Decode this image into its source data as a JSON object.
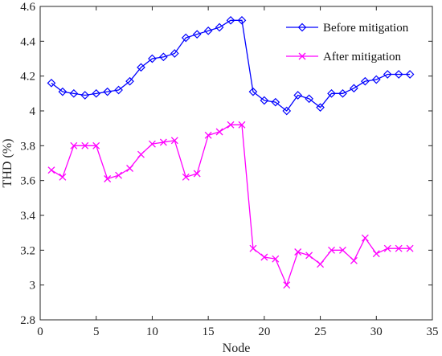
{
  "chart_data": {
    "type": "line",
    "xlabel": "Node",
    "ylabel": "THD (%)",
    "xlim": [
      0,
      35
    ],
    "ylim": [
      2.8,
      4.6
    ],
    "xticks": [
      0,
      5,
      10,
      15,
      20,
      25,
      30,
      35
    ],
    "xtick_labels": [
      "0",
      "5",
      "10",
      "15",
      "20",
      "25",
      "30",
      "35"
    ],
    "yticks": [
      2.8,
      3,
      3.2,
      3.4,
      3.6,
      3.8,
      4,
      4.2,
      4.4,
      4.6
    ],
    "ytick_labels": [
      "2.8",
      "3",
      "3.2",
      "3.4",
      "3.6",
      "3.8",
      "4",
      "4.2",
      "4.4",
      "4.6"
    ],
    "grid": false,
    "legend_position": "top-right",
    "x": [
      1,
      2,
      3,
      4,
      5,
      6,
      7,
      8,
      9,
      10,
      11,
      12,
      13,
      14,
      15,
      16,
      17,
      18,
      19,
      20,
      21,
      22,
      23,
      24,
      25,
      26,
      27,
      28,
      29,
      30,
      31,
      32,
      33
    ],
    "series": [
      {
        "name": "Before mitigation",
        "color": "#0000ff",
        "marker": "diamond",
        "values": [
          4.16,
          4.11,
          4.1,
          4.09,
          4.1,
          4.11,
          4.12,
          4.17,
          4.25,
          4.3,
          4.31,
          4.33,
          4.42,
          4.44,
          4.46,
          4.48,
          4.52,
          4.52,
          4.11,
          4.06,
          4.05,
          4.0,
          4.09,
          4.07,
          4.02,
          4.1,
          4.1,
          4.13,
          4.17,
          4.18,
          4.21,
          4.21,
          4.21
        ]
      },
      {
        "name": "After mitigation",
        "color": "#ff00ff",
        "marker": "x",
        "values": [
          3.66,
          3.62,
          3.8,
          3.8,
          3.8,
          3.61,
          3.63,
          3.67,
          3.75,
          3.81,
          3.82,
          3.83,
          3.62,
          3.64,
          3.86,
          3.88,
          3.92,
          3.92,
          3.21,
          3.16,
          3.15,
          3.0,
          3.19,
          3.17,
          3.12,
          3.2,
          3.2,
          3.14,
          3.27,
          3.18,
          3.21,
          3.21,
          3.21
        ]
      }
    ]
  }
}
